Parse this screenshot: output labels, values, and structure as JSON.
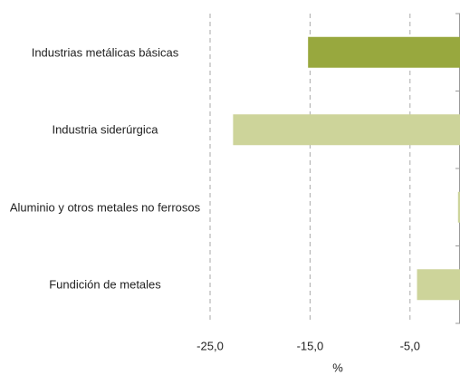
{
  "chart_data": {
    "type": "hbar",
    "categories": [
      "Industrias metálicas básicas",
      "Industria siderúrgica",
      "Aluminio y otros metales no ferrosos",
      "Fundición de metales"
    ],
    "values": [
      -15.2,
      -22.7,
      -0.2,
      -4.3
    ],
    "colors": [
      "#98a83e",
      "#cdd49a",
      "#cdd49a",
      "#cdd49a"
    ],
    "xlim": [
      -25,
      0
    ],
    "xticks": [
      {
        "value": -25,
        "label": "-25,0"
      },
      {
        "value": -15,
        "label": "-15,0"
      },
      {
        "value": -5,
        "label": "-5,0"
      }
    ],
    "xlabel": "%",
    "grid": true
  }
}
